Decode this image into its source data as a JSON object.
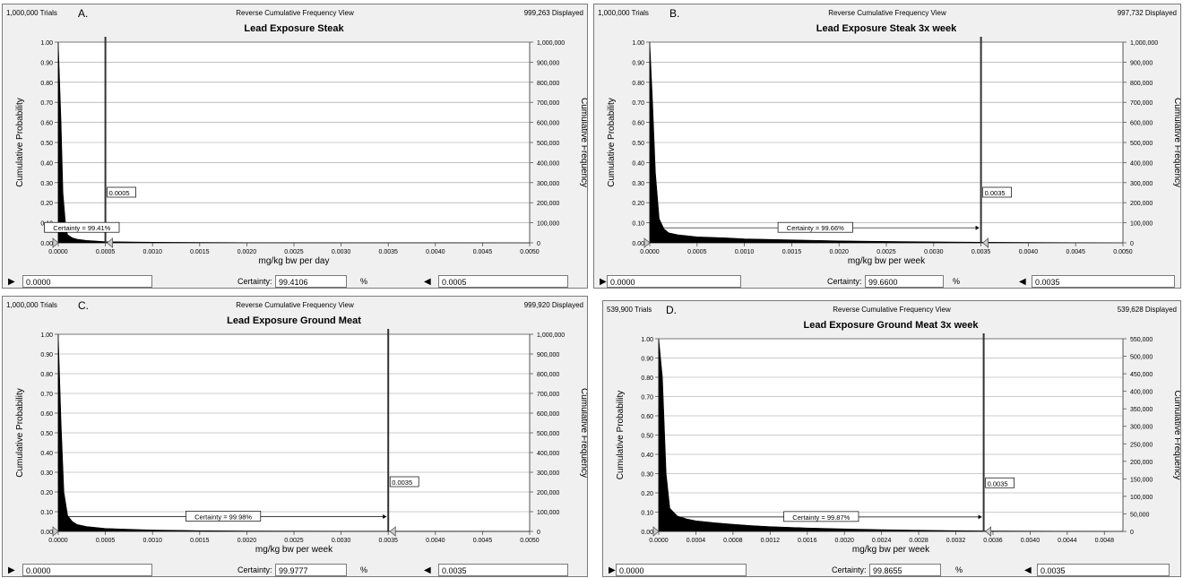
{
  "chart_data": [
    {
      "type": "area",
      "panel_label": "A.",
      "trials": "1,000,000 Trials",
      "view": "Reverse Cumulative Frequency View",
      "displayed": "999,263 Displayed",
      "title": "Lead Exposure Steak",
      "xlabel": "mg/kg bw per day",
      "ylabel": "Cumulative Probability",
      "y2label": "Cumulative Frequency",
      "xlim": [
        0,
        0.005
      ],
      "ylim": [
        0,
        1
      ],
      "y2lim": [
        0,
        1000000
      ],
      "x_ticks": [
        "0.0000",
        "0.0005",
        "0.0010",
        "0.0015",
        "0.0020",
        "0.0025",
        "0.0030",
        "0.0035",
        "0.0040",
        "0.0045",
        "0.0050"
      ],
      "y_ticks": [
        "0.00",
        "0.10",
        "0.20",
        "0.30",
        "0.40",
        "0.50",
        "0.60",
        "0.70",
        "0.80",
        "0.90",
        "1.00"
      ],
      "y2_ticks": [
        "0",
        "100,000",
        "200,000",
        "300,000",
        "400,000",
        "500,000",
        "600,000",
        "700,000",
        "800,000",
        "900,000",
        "1,000,000"
      ],
      "x": [
        0.0,
        3e-05,
        5e-05,
        8e-05,
        0.0001,
        0.00015,
        0.0002,
        0.0003,
        0.0005,
        0.001,
        0.0015,
        0.002,
        0.003,
        0.005
      ],
      "y": [
        1.0,
        0.6,
        0.25,
        0.08,
        0.04,
        0.025,
        0.018,
        0.012,
        0.006,
        0.003,
        0.002,
        0.001,
        0.0005,
        0.0
      ],
      "cutoff": 0.0005,
      "cutoff_label": "0.0005",
      "certainty_label": "Certainty = 99.41%",
      "left_value": "0.0000",
      "certainty_caption": "Certainty:",
      "certainty_value": "99.4106",
      "percent_sign": "%",
      "right_value": "0.0005"
    },
    {
      "type": "area",
      "panel_label": "B.",
      "trials": "1,000,000 Trials",
      "view": "Reverse Cumulative Frequency View",
      "displayed": "997,732 Displayed",
      "title": "Lead Exposure Steak 3x week",
      "xlabel": "mg/kg bw per week",
      "ylabel": "Cumulative Probability",
      "y2label": "Cumulative Frequency",
      "xlim": [
        0,
        0.005
      ],
      "ylim": [
        0,
        1
      ],
      "y2lim": [
        0,
        1000000
      ],
      "x_ticks": [
        "0.0000",
        "0.0005",
        "0.0010",
        "0.0015",
        "0.0020",
        "0.0025",
        "0.0030",
        "0.0035",
        "0.0040",
        "0.0045",
        "0.0050"
      ],
      "y_ticks": [
        "0.00",
        "0.10",
        "0.20",
        "0.30",
        "0.40",
        "0.50",
        "0.60",
        "0.70",
        "0.80",
        "0.90",
        "1.00"
      ],
      "y2_ticks": [
        "0",
        "100,000",
        "200,000",
        "300,000",
        "400,000",
        "500,000",
        "600,000",
        "700,000",
        "800,000",
        "900,000",
        "1,000,000"
      ],
      "x": [
        0.0,
        3e-05,
        6e-05,
        0.0001,
        0.00015,
        0.0002,
        0.0003,
        0.0005,
        0.0008,
        0.001,
        0.0015,
        0.002,
        0.0025,
        0.003,
        0.0035,
        0.005
      ],
      "y": [
        1.0,
        0.7,
        0.35,
        0.12,
        0.07,
        0.05,
        0.04,
        0.03,
        0.025,
        0.02,
        0.015,
        0.01,
        0.007,
        0.005,
        0.003,
        0.0
      ],
      "cutoff": 0.0035,
      "cutoff_label": "0.0035",
      "certainty_label": "Certainty = 99.66%",
      "left_value": "0.0000",
      "certainty_caption": "Certainty:",
      "certainty_value": "99.6600",
      "percent_sign": "%",
      "right_value": "0.0035"
    },
    {
      "type": "area",
      "panel_label": "C.",
      "trials": "1,000,000 Trials",
      "view": "Reverse Cumulative Frequency View",
      "displayed": "999,920 Displayed",
      "title": "Lead Exposure Ground Meat",
      "xlabel": "mg/kg bw per week",
      "ylabel": "Cumulative Probability",
      "y2label": "Cumulative Frequency",
      "xlim": [
        0,
        0.005
      ],
      "ylim": [
        0,
        1
      ],
      "y2lim": [
        0,
        1000000
      ],
      "x_ticks": [
        "0.0000",
        "0.0005",
        "0.0010",
        "0.0015",
        "0.0020",
        "0.0025",
        "0.0030",
        "0.0035",
        "0.0040",
        "0.0045",
        "0.0050"
      ],
      "y_ticks": [
        "0.00",
        "0.10",
        "0.20",
        "0.30",
        "0.40",
        "0.50",
        "0.60",
        "0.70",
        "0.80",
        "0.90",
        "1.00"
      ],
      "y2_ticks": [
        "0",
        "100,000",
        "200,000",
        "300,000",
        "400,000",
        "500,000",
        "600,000",
        "700,000",
        "800,000",
        "900,000",
        "1,000,000"
      ],
      "x": [
        0.0,
        3e-05,
        6e-05,
        0.0001,
        0.00015,
        0.0002,
        0.0003,
        0.0005,
        0.0008,
        0.001,
        0.0015,
        0.002,
        0.003,
        0.005
      ],
      "y": [
        1.0,
        0.55,
        0.2,
        0.08,
        0.05,
        0.035,
        0.025,
        0.015,
        0.01,
        0.007,
        0.004,
        0.002,
        0.001,
        0.0
      ],
      "cutoff": 0.0035,
      "cutoff_label": "0.0035",
      "certainty_label": "Certainty = 99.98%",
      "left_value": "0.0000",
      "certainty_caption": "Certainty:",
      "certainty_value": "99.9777",
      "percent_sign": "%",
      "right_value": "0.0035"
    },
    {
      "type": "area",
      "panel_label": "D.",
      "trials": "539,900 Trials",
      "view": "Reverse Cumulative Frequency View",
      "displayed": "539,628 Displayed",
      "title": "Lead Exposure Ground Meat 3x week",
      "xlabel": "mg/kg bw per week",
      "ylabel": "Cumulative Probability",
      "y2label": "Cumulative Frequency",
      "xlim": [
        0,
        0.005
      ],
      "ylim": [
        0,
        1
      ],
      "y2lim": [
        0,
        550000
      ],
      "x_ticks": [
        "0.0000",
        "0.0004",
        "0.0008",
        "0.0012",
        "0.0016",
        "0.0020",
        "0.0024",
        "0.0028",
        "0.0032",
        "0.0036",
        "0.0040",
        "0.0044",
        "0.0048"
      ],
      "y_ticks": [
        "0.00",
        "0.10",
        "0.20",
        "0.30",
        "0.40",
        "0.50",
        "0.60",
        "0.70",
        "0.80",
        "0.90",
        "1.00"
      ],
      "y2_ticks": [
        "0",
        "50,000",
        "100,000",
        "150,000",
        "200,000",
        "250,000",
        "300,000",
        "350,000",
        "400,000",
        "450,000",
        "500,000",
        "550,000"
      ],
      "x": [
        0.0,
        4e-05,
        8e-05,
        0.00012,
        0.0002,
        0.0003,
        0.0004,
        0.0006,
        0.0008,
        0.001,
        0.0012,
        0.0016,
        0.002,
        0.0024,
        0.0028,
        0.0032,
        0.0036,
        0.005
      ],
      "y": [
        1.0,
        0.8,
        0.3,
        0.12,
        0.08,
        0.065,
        0.055,
        0.045,
        0.037,
        0.03,
        0.025,
        0.018,
        0.013,
        0.009,
        0.006,
        0.004,
        0.002,
        0.0
      ],
      "cutoff": 0.0035,
      "cutoff_label": "0.0035",
      "certainty_label": "Certainty = 99.87%",
      "left_value": "0.0000",
      "certainty_caption": "Certainty:",
      "certainty_value": "99.8655",
      "percent_sign": "%",
      "right_value": "0.0035"
    }
  ]
}
